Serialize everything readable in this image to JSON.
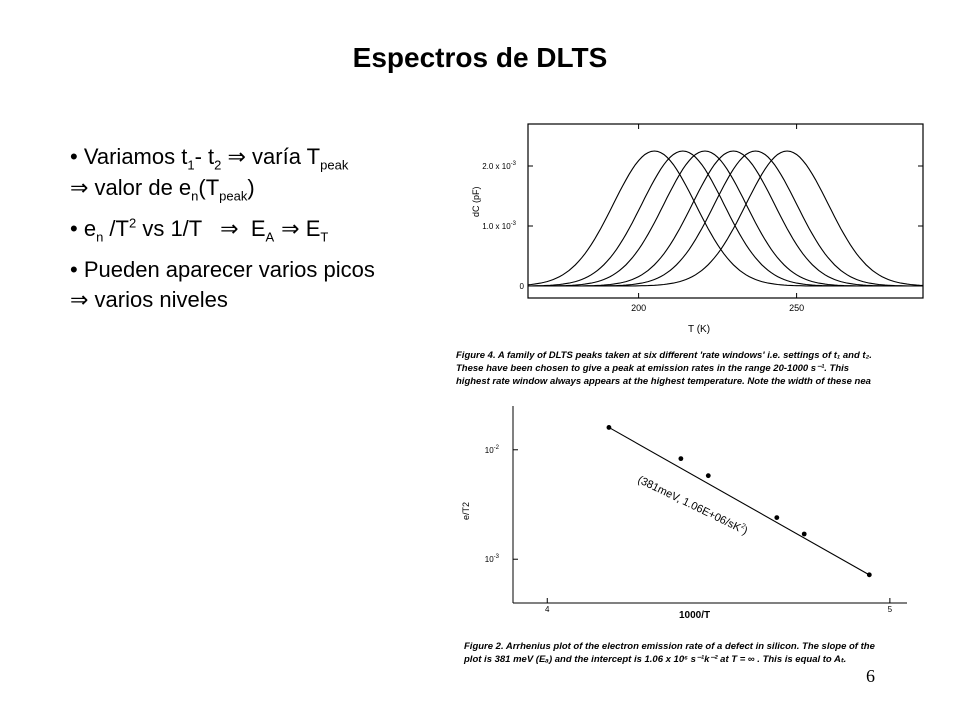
{
  "title": "Espectros de DLTS",
  "bullets": [
    {
      "line1": {
        "a": "Variamos t",
        "b": "1",
        "c": "- t",
        "d": "2",
        "e": "⇒",
        "f": " varía T",
        "g": "peak"
      },
      "line2": {
        "a": "⇒",
        "b": " valor de e",
        "c": "n",
        "d": "(T",
        "e": "peak",
        "f": ")"
      }
    },
    {
      "line1": {
        "a": "e",
        "b": "n",
        "c": " /T",
        "d": "2",
        "e": " vs 1/T   ",
        "f": "⇒",
        "g": "  E",
        "h": "A",
        "i": " ⇒",
        "j": " E",
        "k": "T"
      }
    },
    {
      "line1": {
        "a": "Pueden aparecer varios picos"
      },
      "line2": {
        "a": "⇒",
        "b": " varios niveles"
      }
    }
  ],
  "figure4": {
    "caption_lines": [
      "Figure 4. A family of DLTS peaks taken at six different 'rate windows' i.e. settings of t₁ and t₂.",
      "These have been chosen to give a peak at emission rates in the range 20-1000 s⁻¹. This",
      "highest rate window always appears at the highest temperature. Note the width of these nea"
    ],
    "chart_data": {
      "type": "line",
      "xlabel": "T (K)",
      "ylabel": "dC (pF)",
      "xlim": [
        165,
        290
      ],
      "ylim": [
        -0.0002,
        0.0027
      ],
      "x_ticks": [
        200,
        250
      ],
      "y_ticks": [
        {
          "value": 0,
          "label": "0"
        },
        {
          "value": 0.001,
          "label": "1.0 x 10-3"
        },
        {
          "value": 0.002,
          "label": "2.0 x 10-3"
        }
      ],
      "series": [
        {
          "peak_T": 205,
          "peak_dC": 0.00225
        },
        {
          "peak_T": 214,
          "peak_dC": 0.00225
        },
        {
          "peak_T": 221,
          "peak_dC": 0.00225
        },
        {
          "peak_T": 230,
          "peak_dC": 0.00225
        },
        {
          "peak_T": 237,
          "peak_dC": 0.00225
        },
        {
          "peak_T": 247,
          "peak_dC": 0.00225
        }
      ]
    }
  },
  "figure2": {
    "caption_lines": [
      "Figure 2. Arrhenius plot of the electron emission rate of a defect in silicon. The slope of the",
      "plot is 381 meV (Eₐ) and the intercept is 1.06 x 10⁶ s⁻¹k⁻² at T = ∞ . This is equal to Aₜ."
    ],
    "chart_data": {
      "type": "scatter",
      "xlabel": "1000/T",
      "ylabel": "e/T2",
      "xlim": [
        3.9,
        5.05
      ],
      "ylim_log10": [
        -3.4,
        -1.6
      ],
      "x_ticks": [
        4,
        5
      ],
      "y_ticks": [
        {
          "value": 0.01,
          "label": "10",
          "exp": "-2"
        },
        {
          "value": 0.001,
          "label": "10",
          "exp": "-3"
        }
      ],
      "fit_label": "(381meV, 1.06E+06/sK",
      "fit_label_exp": "2",
      "fit_label_close": ")",
      "points": [
        {
          "x": 4.18,
          "y": 0.016
        },
        {
          "x": 4.39,
          "y": 0.0083
        },
        {
          "x": 4.47,
          "y": 0.0058
        },
        {
          "x": 4.67,
          "y": 0.0024
        },
        {
          "x": 4.75,
          "y": 0.0017
        },
        {
          "x": 4.94,
          "y": 0.00072
        }
      ]
    }
  },
  "page_number": "6"
}
